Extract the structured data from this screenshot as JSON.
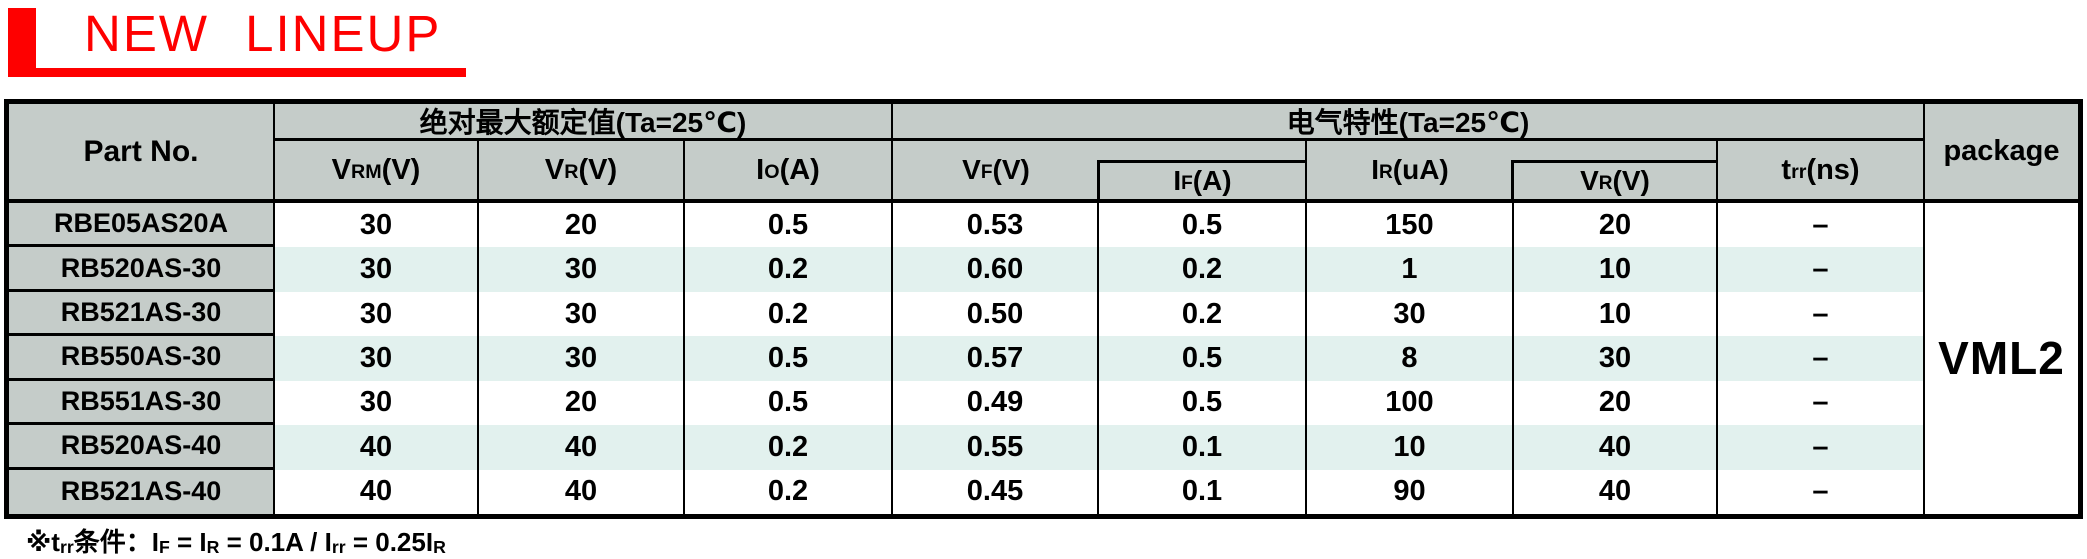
{
  "title": {
    "text": "NEW LINEUP",
    "accent_color": "#fe0000"
  },
  "colors": {
    "accent_red": "#fe0000",
    "header_bg": "#c5ccc9",
    "alt_row_bg": "#e2f1ee",
    "border": "#000000"
  },
  "table": {
    "header": {
      "part_no": "Part No.",
      "abs_max_group": "绝对最大额定值(Ta=25℃)",
      "elec_group": "电气特性(Ta=25℃)",
      "package": "package",
      "col_vrm": [
        {
          "t": "V"
        },
        {
          "t": "RM",
          "sub": true
        },
        {
          "t": " (V)"
        }
      ],
      "col_vr": [
        {
          "t": "V"
        },
        {
          "t": "R",
          "sub": true
        },
        {
          "t": " (V)"
        }
      ],
      "col_io": [
        {
          "t": "I"
        },
        {
          "t": "O",
          "sub": true
        },
        {
          "t": " (A)"
        }
      ],
      "col_vf": [
        {
          "t": "V"
        },
        {
          "t": "F",
          "sub": true
        },
        {
          "t": " (V)"
        }
      ],
      "col_if": [
        {
          "t": "I"
        },
        {
          "t": "F",
          "sub": true
        },
        {
          "t": " (A)"
        }
      ],
      "col_ir": [
        {
          "t": "I"
        },
        {
          "t": "R",
          "sub": true
        },
        {
          "t": " (uA)"
        }
      ],
      "col_vr2": [
        {
          "t": "V"
        },
        {
          "t": "R",
          "sub": true
        },
        {
          "t": " (V)"
        }
      ],
      "col_trr": [
        {
          "t": "t"
        },
        {
          "t": "rr",
          "sub": true
        },
        {
          "t": " (ns)"
        }
      ]
    },
    "rows": [
      {
        "part": "RBE05AS20A",
        "vrm": "30",
        "vr": "20",
        "io": "0.5",
        "vf": "0.53",
        "if": "0.5",
        "ir": "150",
        "vr2": "20",
        "trr": "–"
      },
      {
        "part": "RB520AS-30",
        "vrm": "30",
        "vr": "30",
        "io": "0.2",
        "vf": "0.60",
        "if": "0.2",
        "ir": "1",
        "vr2": "10",
        "trr": "–"
      },
      {
        "part": "RB521AS-30",
        "vrm": "30",
        "vr": "30",
        "io": "0.2",
        "vf": "0.50",
        "if": "0.2",
        "ir": "30",
        "vr2": "10",
        "trr": "–"
      },
      {
        "part": "RB550AS-30",
        "vrm": "30",
        "vr": "30",
        "io": "0.5",
        "vf": "0.57",
        "if": "0.5",
        "ir": "8",
        "vr2": "30",
        "trr": "–"
      },
      {
        "part": "RB551AS-30",
        "vrm": "30",
        "vr": "20",
        "io": "0.5",
        "vf": "0.49",
        "if": "0.5",
        "ir": "100",
        "vr2": "20",
        "trr": "–"
      },
      {
        "part": "RB520AS-40",
        "vrm": "40",
        "vr": "40",
        "io": "0.2",
        "vf": "0.55",
        "if": "0.1",
        "ir": "10",
        "vr2": "40",
        "trr": "–"
      },
      {
        "part": "RB521AS-40",
        "vrm": "40",
        "vr": "40",
        "io": "0.2",
        "vf": "0.45",
        "if": "0.1",
        "ir": "90",
        "vr2": "40",
        "trr": "–"
      }
    ],
    "package_value": "VML2"
  },
  "note": {
    "segments": [
      {
        "t": "※t"
      },
      {
        "t": "rr",
        "sub": true
      },
      {
        "t": "条件：I"
      },
      {
        "t": "F",
        "sub": true
      },
      {
        "t": " = I"
      },
      {
        "t": "R",
        "sub": true
      },
      {
        "t": " = 0.1A / I"
      },
      {
        "t": "rr",
        "sub": true
      },
      {
        "t": " = 0.25I"
      },
      {
        "t": "R",
        "sub": true
      }
    ]
  }
}
